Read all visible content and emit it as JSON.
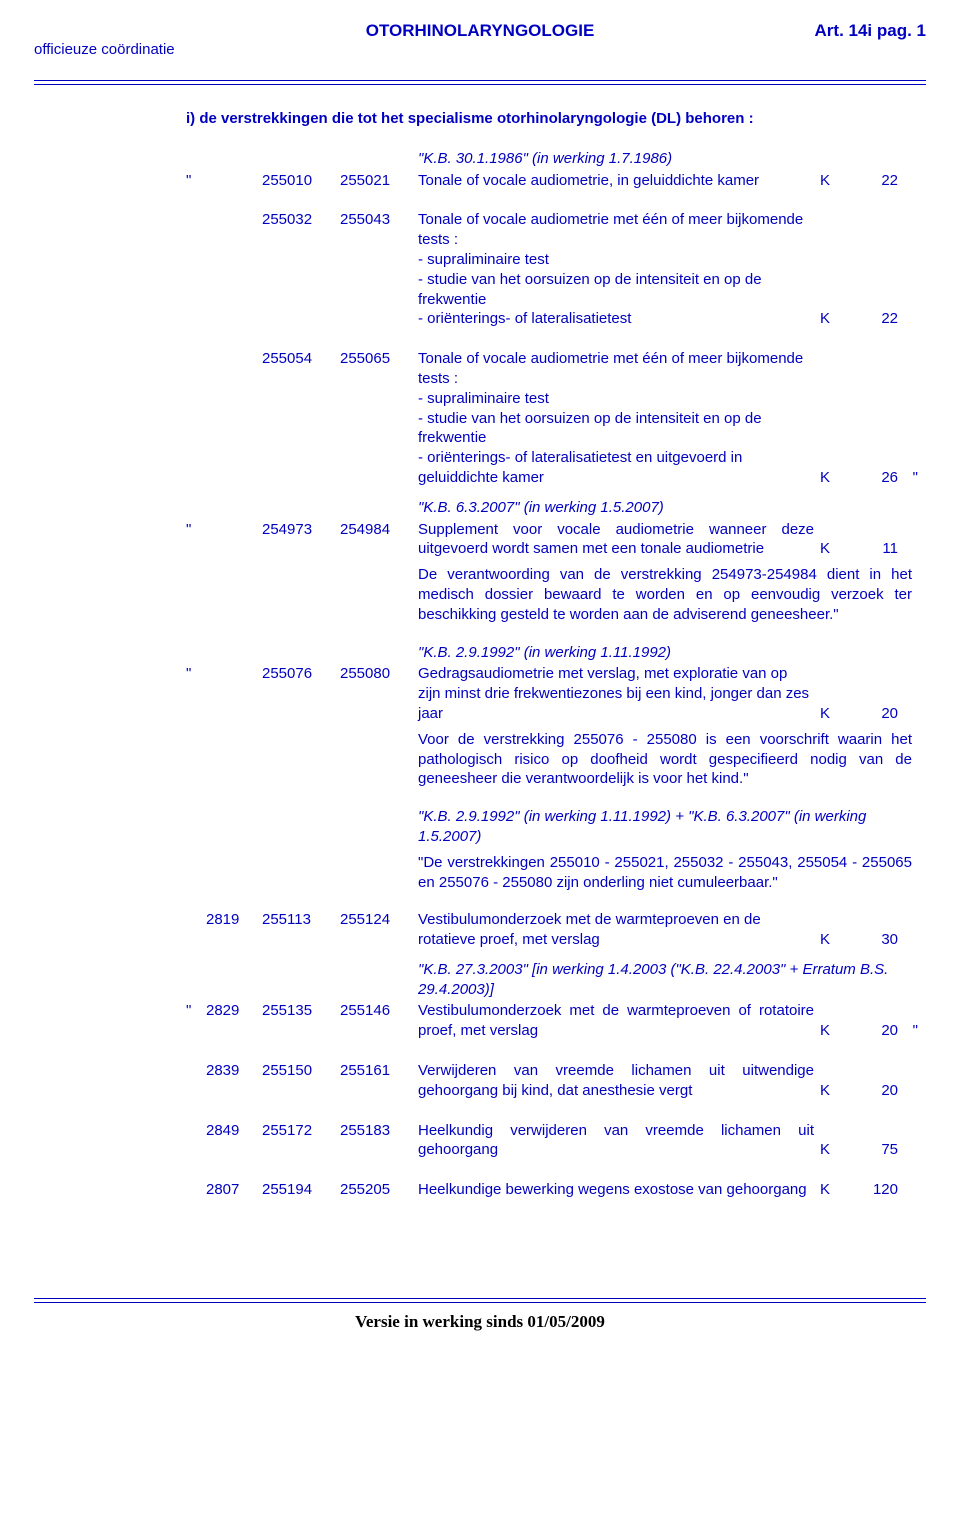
{
  "header": {
    "center": "OTORHINOLARYNGOLOGIE",
    "right": "Art. 14i pag. 1",
    "left": "officieuze coördinatie"
  },
  "intro": "i) de verstrekkingen die tot het specialisme otorhinolaryngologie (DL) behoren :",
  "kb1": "\"K.B. 30.1.1986\" (in werking 1.7.1986)",
  "rows": {
    "r1": {
      "ql": "\"",
      "codeA": "255010",
      "codeB": "255021",
      "desc": "Tonale of vocale audiometrie, in geluiddichte kamer",
      "K": "K",
      "val": "22"
    },
    "r2": {
      "codeA": "255032",
      "codeB": "255043",
      "desc": "Tonale of vocale audiometrie met één of meer bijkomende tests :\n- supraliminaire test\n- studie van het oorsuizen op de intensiteit en op de frekwentie\n- oriënterings- of lateralisatietest",
      "K": "K",
      "val": "22"
    },
    "r3": {
      "codeA": "255054",
      "codeB": "255065",
      "desc": "Tonale of vocale audiometrie met één of meer bijkomende tests :\n- supraliminaire test\n- studie van het oorsuizen op de intensiteit en op de frekwentie\n- oriënterings- of lateralisatietest en uitgevoerd in geluiddichte kamer",
      "K": "K",
      "val": "26",
      "qr": "\""
    },
    "kb2": "\"K.B. 6.3.2007\" (in werking 1.5.2007)",
    "r4": {
      "ql": "\"",
      "codeA": "254973",
      "codeB": "254984",
      "desc": "Supplement voor vocale audiometrie wanneer deze uitgevoerd wordt samen met een tonale audiometrie",
      "K": "K",
      "val": "11"
    },
    "note1": "De verantwoording van de verstrekking 254973-254984 dient in het medisch dossier bewaard te worden en op eenvoudig verzoek ter beschikking gesteld te worden aan de adviserend geneesheer.\"",
    "kb3": "\"K.B. 2.9.1992\" (in werking 1.11.1992)",
    "r5": {
      "ql": "\"",
      "codeA": "255076",
      "codeB": "255080",
      "desc": "Gedragsaudiometrie met verslag, met exploratie van op zijn minst drie frekwentiezones bij een kind, jonger dan zes jaar",
      "K": "K",
      "val": "20"
    },
    "note2": "Voor de verstrekking 255076 - 255080 is een voorschrift waarin het pathologisch risico op doofheid wordt gespecifieerd nodig van de geneesheer die verantwoordelijk is voor het kind.\"",
    "kb4": "\"K.B. 2.9.1992\" (in werking 1.11.1992) + \"K.B. 6.3.2007\" (in werking 1.5.2007)",
    "note3": "\"De verstrekkingen 255010 - 255021, 255032 - 255043, 255054 - 255065 en 255076 - 255080 zijn onderling niet cumuleerbaar.\"",
    "r6": {
      "seq": "2819",
      "codeA": "255113",
      "codeB": "255124",
      "desc": "Vestibulumonderzoek met de warmteproeven en de rotatieve proef, met verslag",
      "K": "K",
      "val": "30"
    },
    "kb5": "\"K.B. 27.3.2003\" [in werking 1.4.2003 (\"K.B. 22.4.2003\" + Erratum B.S. 29.4.2003)]",
    "r7": {
      "ql": "\"",
      "seq": "2829",
      "codeA": "255135",
      "codeB": "255146",
      "desc": "Vestibulumonderzoek met de warmteproeven of rotatoire proef, met verslag",
      "K": "K",
      "val": "20",
      "qr": "\""
    },
    "r8": {
      "seq": "2839",
      "codeA": "255150",
      "codeB": "255161",
      "desc": "Verwijderen van vreemde lichamen uit uitwendige gehoorgang bij kind, dat anesthesie vergt",
      "K": "K",
      "val": "20"
    },
    "r9": {
      "seq": "2849",
      "codeA": "255172",
      "codeB": "255183",
      "desc": "Heelkundig verwijderen van vreemde lichamen uit gehoorgang",
      "K": "K",
      "val": "75"
    },
    "r10": {
      "seq": "2807",
      "codeA": "255194",
      "codeB": "255205",
      "desc": "Heelkundige bewerking wegens exostose van gehoorgang",
      "K": "K",
      "val": "120"
    }
  },
  "footer": "Versie in werking sinds 01/05/2009"
}
